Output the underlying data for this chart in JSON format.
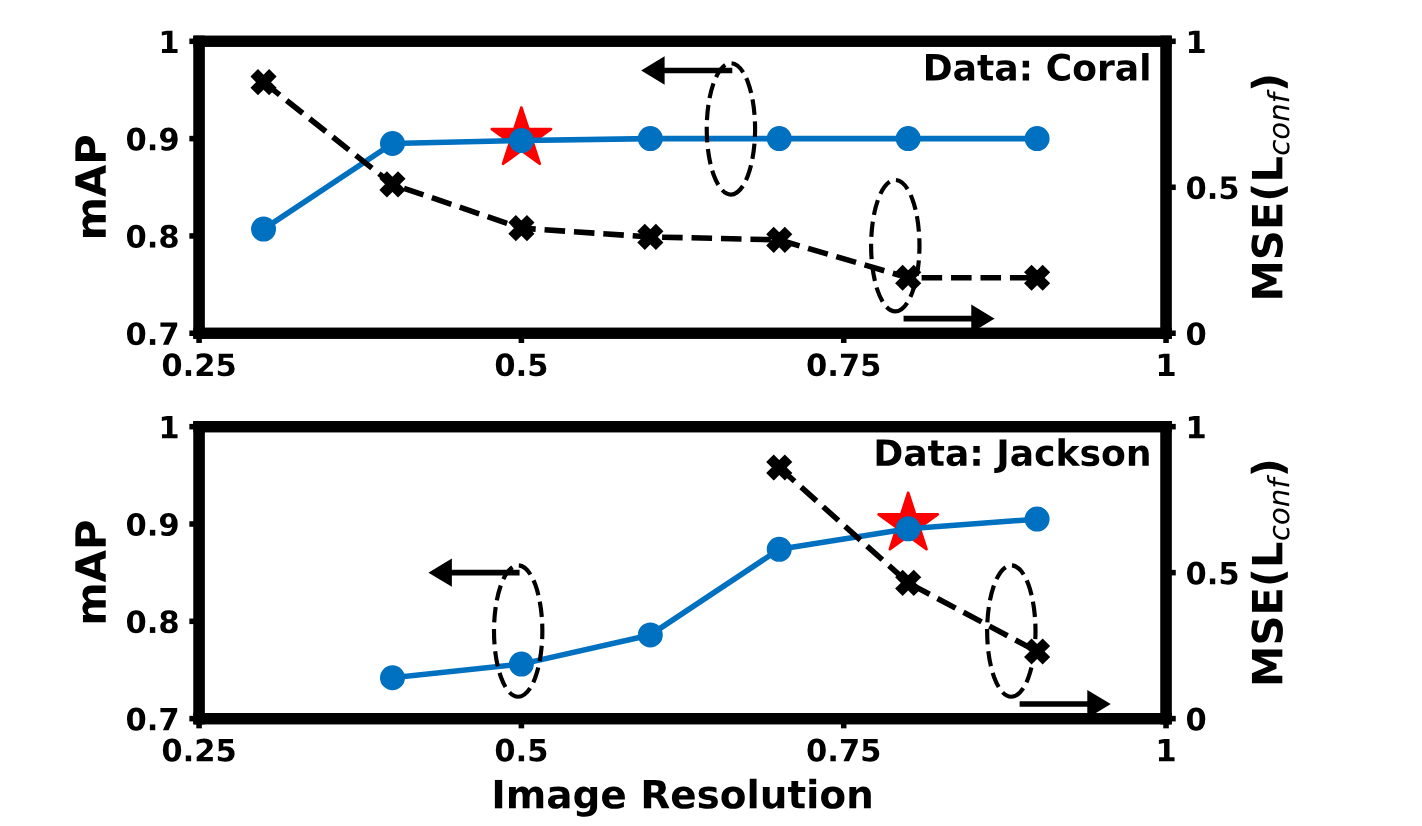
{
  "chart_data": [
    {
      "type": "line",
      "annotations": [
        "Data: Coral"
      ],
      "ylabel": "mAP",
      "y2label": "MSE(L$_{conf}$)",
      "xlim": [
        0.25,
        1
      ],
      "xticks": [
        0.25,
        0.5,
        0.75,
        1
      ],
      "ylim": [
        0.7,
        1
      ],
      "yticks": [
        0.7,
        0.8,
        0.9,
        1
      ],
      "y2lim": [
        0,
        1
      ],
      "y2ticks": [
        0,
        0.5,
        1
      ],
      "grid": false,
      "legend": false,
      "series": [
        {
          "color": "#0070c0",
          "x": [
            0.3,
            0.4,
            0.5,
            0.6,
            0.7,
            0.8,
            0.9
          ],
          "values": [
            0.807,
            0.895,
            0.898,
            0.9,
            0.9,
            0.9,
            0.9
          ],
          "marker": "circle",
          "line_style": "solid"
        },
        {
          "color": "#000000",
          "axis": "y2",
          "x": [
            0.3,
            0.4,
            0.5,
            0.6,
            0.7,
            0.8,
            0.9
          ],
          "values": [
            0.86,
            0.51,
            0.36,
            0.33,
            0.32,
            0.19,
            0.19
          ],
          "marker": "cross",
          "line_style": "dashed"
        },
        {
          "type": "scatter",
          "color": "#ff0000",
          "x": [
            0.5
          ],
          "values": [
            0.9
          ],
          "marker": "star"
        }
      ]
    },
    {
      "type": "line",
      "annotations": [
        "Data: Jackson"
      ],
      "xlabel": "Image Resolution",
      "ylabel": "mAP",
      "y2label": "MSE(L$_{conf}$)",
      "xlim": [
        0.25,
        1
      ],
      "xticks": [
        0.25,
        0.5,
        0.75,
        1
      ],
      "ylim": [
        0.7,
        1
      ],
      "yticks": [
        0.7,
        0.8,
        0.9,
        1
      ],
      "y2lim": [
        0,
        1
      ],
      "y2ticks": [
        0,
        0.5,
        1
      ],
      "grid": false,
      "legend": false,
      "series": [
        {
          "color": "#0070c0",
          "x": [
            0.4,
            0.5,
            0.6,
            0.7,
            0.8,
            0.9
          ],
          "values": [
            0.742,
            0.756,
            0.786,
            0.874,
            0.895,
            0.905
          ],
          "marker": "circle",
          "line_style": "solid"
        },
        {
          "color": "#000000",
          "axis": "y2",
          "x": [
            0.7,
            0.8,
            0.9
          ],
          "values": [
            0.86,
            0.465,
            0.23
          ],
          "marker": "cross",
          "line_style": "dashed"
        },
        {
          "type": "scatter",
          "color": "#ff0000",
          "x": [
            0.8
          ],
          "values": [
            0.9
          ],
          "marker": "star"
        }
      ]
    }
  ]
}
